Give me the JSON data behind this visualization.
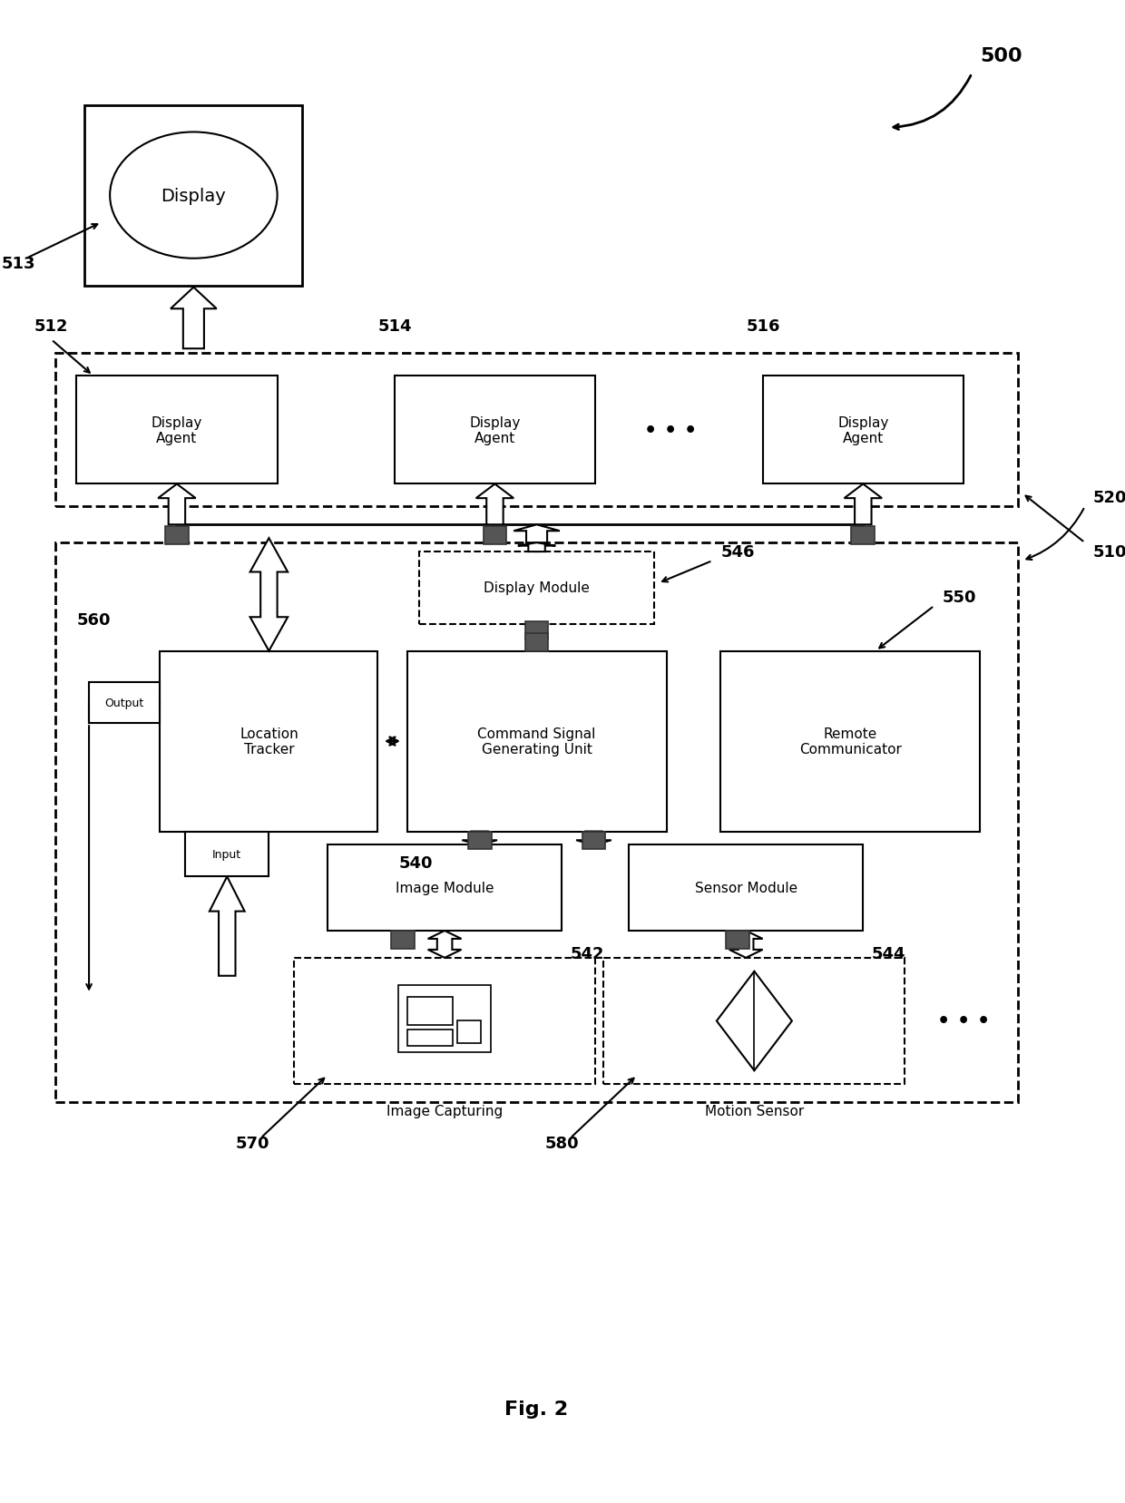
{
  "fig_label": "Fig. 2",
  "bg": "#ffffff",
  "lbl_500": "500",
  "lbl_513": "513",
  "lbl_512": "512",
  "lbl_514": "514",
  "lbl_516": "516",
  "lbl_510": "510",
  "lbl_520": "520",
  "lbl_546": "546",
  "lbl_540": "540",
  "lbl_550": "550",
  "lbl_560": "560",
  "lbl_542": "542",
  "lbl_544": "544",
  "lbl_570": "570",
  "lbl_580": "580",
  "txt_display": "Display",
  "txt_da": "Display\nAgent",
  "txt_dm": "Display Module",
  "txt_cs": "Command Signal\nGenerating Unit",
  "txt_rc": "Remote\nCommunicator",
  "txt_lt": "Location\nTracker",
  "txt_im": "Image Module",
  "txt_sm": "Sensor Module",
  "txt_ic": "Image Capturing",
  "txt_ms": "Motion Sensor",
  "txt_out": "Output",
  "txt_inp": "Input",
  "dots": "• • •"
}
